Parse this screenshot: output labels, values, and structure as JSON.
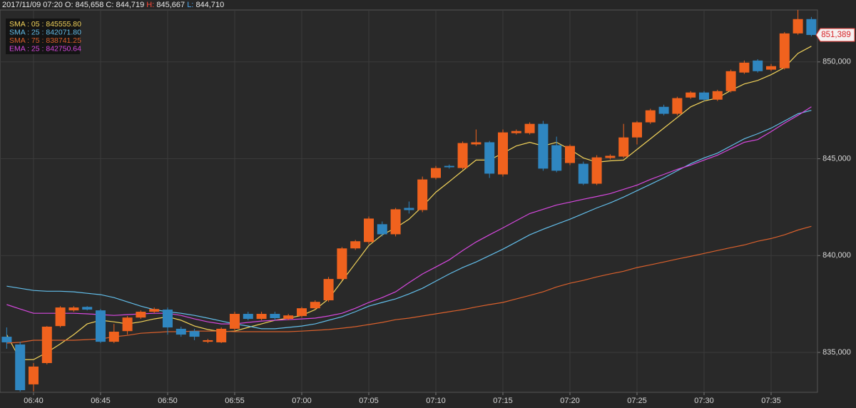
{
  "chart_data": {
    "type": "candlestick",
    "header": {
      "datetime": "2017/11/09 07:20",
      "o_label": "O:",
      "o": "845,658",
      "c_label": "C:",
      "c": "844,719",
      "h_label": "H:",
      "h": "845,667",
      "l_label": "L:",
      "l": "844,710"
    },
    "categories": [
      null,
      null,
      "06:40",
      null,
      null,
      null,
      null,
      "06:45",
      null,
      null,
      null,
      null,
      "06:50",
      null,
      null,
      null,
      null,
      "06:55",
      null,
      null,
      null,
      null,
      "07:00",
      null,
      null,
      null,
      null,
      "07:05",
      null,
      null,
      null,
      null,
      "07:10",
      null,
      null,
      null,
      null,
      "07:15",
      null,
      null,
      null,
      null,
      "07:20",
      null,
      null,
      null,
      null,
      "07:25",
      null,
      null,
      null,
      null,
      "07:30",
      null,
      null,
      null,
      null,
      "07:35",
      null,
      null,
      null
    ],
    "candles": {
      "up_color": "#f0621e",
      "down_color": "#2f86c0",
      "open": [
        835810,
        835410,
        833350,
        834450,
        836360,
        837170,
        837350,
        837170,
        835550,
        836100,
        836800,
        837100,
        837210,
        836220,
        836100,
        835550,
        835520,
        836220,
        836990,
        836730,
        836990,
        836730,
        836880,
        837280,
        837690,
        838790,
        840370,
        840700,
        841620,
        841100,
        842460,
        842350,
        844010,
        844630,
        844520,
        845740,
        845850,
        844190,
        846320,
        846320,
        846800,
        845700,
        844780,
        844740,
        843710,
        845040,
        845110,
        846100,
        846880,
        847680,
        847320,
        848160,
        848420,
        848050,
        848490,
        849450,
        850070,
        849600,
        849670,
        851470,
        852210
      ],
      "close": [
        835520,
        833050,
        834270,
        836330,
        837320,
        837320,
        837210,
        835550,
        836070,
        836800,
        837100,
        837240,
        836290,
        835920,
        835810,
        835630,
        836220,
        836990,
        836730,
        836990,
        836770,
        836910,
        837280,
        837610,
        838790,
        840370,
        840740,
        841910,
        841100,
        842390,
        842350,
        843930,
        844520,
        844560,
        845810,
        845850,
        844230,
        846360,
        846430,
        846800,
        844490,
        844380,
        845660,
        843710,
        845070,
        845150,
        846100,
        846880,
        847500,
        847320,
        848130,
        848420,
        848050,
        848490,
        849520,
        849960,
        849520,
        849780,
        851470,
        852210,
        851390
      ],
      "high": [
        836290,
        835550,
        834450,
        836360,
        837390,
        837390,
        837390,
        837240,
        836470,
        836880,
        837170,
        837320,
        837320,
        836330,
        836220,
        835700,
        836290,
        837100,
        837100,
        837100,
        837100,
        836990,
        837350,
        837690,
        838900,
        840440,
        840810,
        842020,
        841760,
        842460,
        842790,
        844080,
        844630,
        844700,
        845890,
        846510,
        845920,
        846510,
        846510,
        846880,
        846950,
        846140,
        845740,
        844850,
        845180,
        845230,
        846800,
        846950,
        847580,
        847790,
        848200,
        848490,
        848490,
        848560,
        849600,
        850070,
        850140,
        849890,
        851540,
        852680,
        852320
      ],
      "low": [
        835190,
        832980,
        832980,
        834380,
        836290,
        837100,
        837170,
        835480,
        835480,
        835920,
        836730,
        837030,
        835920,
        835810,
        835630,
        835480,
        835480,
        836100,
        836660,
        836660,
        836660,
        836660,
        836800,
        837210,
        837610,
        838720,
        840290,
        840590,
        840990,
        840990,
        842170,
        842240,
        843930,
        844490,
        844450,
        845660,
        844010,
        844080,
        846250,
        846250,
        844380,
        844300,
        844670,
        843640,
        843640,
        844960,
        845040,
        845740,
        846800,
        847240,
        847240,
        848090,
        847980,
        847980,
        848420,
        849380,
        849450,
        849520,
        849600,
        851400,
        851320
      ]
    },
    "series": [
      {
        "name": "SMA : 05 : 845555.80",
        "color": "#f2d35a",
        "values": [
          835920,
          834630,
          834630,
          835000,
          835440,
          835920,
          836470,
          836660,
          836580,
          836470,
          836580,
          836730,
          836840,
          836660,
          836360,
          836180,
          836070,
          836100,
          836290,
          836470,
          836660,
          836770,
          836910,
          837210,
          837760,
          838680,
          839600,
          840520,
          841070,
          841430,
          841880,
          842540,
          843270,
          843820,
          844380,
          844930,
          844930,
          845290,
          845660,
          845850,
          845660,
          845850,
          845480,
          845040,
          844820,
          844890,
          844930,
          845480,
          846030,
          846580,
          847130,
          847680,
          847980,
          848130,
          848530,
          848860,
          849040,
          849340,
          849710,
          850440,
          850810
        ]
      },
      {
        "name": "SMA : 25 : 842071.80",
        "color": "#62bde9",
        "values": [
          838420,
          838310,
          838200,
          838160,
          838160,
          838130,
          838050,
          837980,
          837830,
          837610,
          837390,
          837210,
          837100,
          837020,
          836910,
          836770,
          836620,
          836470,
          836360,
          836220,
          836220,
          836290,
          836360,
          836470,
          836660,
          836840,
          837100,
          837390,
          837580,
          837760,
          838020,
          838310,
          838680,
          839050,
          839380,
          839670,
          840000,
          840330,
          840700,
          841070,
          841360,
          841620,
          841880,
          842170,
          842460,
          842720,
          843020,
          843350,
          843680,
          844010,
          844380,
          844740,
          845040,
          845290,
          845660,
          846030,
          846290,
          846580,
          846950,
          847320,
          847500
        ]
      },
      {
        "name": "SMA : 75 : 838741.25",
        "color": "#d9602c",
        "values": [
          835480,
          835520,
          835630,
          835630,
          835630,
          835630,
          835660,
          835700,
          835810,
          835880,
          835990,
          836030,
          836070,
          836070,
          836100,
          836100,
          836100,
          836070,
          836070,
          836070,
          836070,
          836070,
          836100,
          836140,
          836180,
          836250,
          836330,
          836440,
          836550,
          836690,
          836770,
          836880,
          836990,
          837100,
          837210,
          837350,
          837470,
          837580,
          837760,
          837940,
          838130,
          838380,
          838570,
          838720,
          838900,
          839050,
          839190,
          839380,
          839520,
          839670,
          839820,
          839960,
          840110,
          840260,
          840410,
          840550,
          840740,
          840880,
          841070,
          841320,
          841510
        ]
      },
      {
        "name": "EMA : 25 : 842750.64",
        "color": "#d648de",
        "values": [
          837470,
          837240,
          837020,
          837020,
          837020,
          837020,
          836990,
          836950,
          836910,
          836950,
          836990,
          837020,
          837020,
          836910,
          836730,
          836580,
          836470,
          836470,
          836550,
          836620,
          836660,
          836690,
          836730,
          836770,
          836880,
          837020,
          837280,
          837580,
          837830,
          838130,
          838600,
          839050,
          839410,
          839780,
          840260,
          840700,
          841070,
          841430,
          841800,
          842170,
          842390,
          842610,
          842760,
          842910,
          843050,
          843200,
          843420,
          843640,
          843930,
          844190,
          844450,
          844670,
          844930,
          845180,
          845520,
          845850,
          845990,
          846400,
          846840,
          847240,
          847680
        ]
      }
    ],
    "last_price": {
      "value": 851389,
      "label": "851,389"
    },
    "ylim": [
      832940,
      852680
    ],
    "yticks": [
      {
        "value": 835000,
        "label": "835,000"
      },
      {
        "value": 840000,
        "label": "840,000"
      },
      {
        "value": 845000,
        "label": "845,000"
      },
      {
        "value": 850000,
        "label": "850,000"
      }
    ],
    "grid": true
  }
}
